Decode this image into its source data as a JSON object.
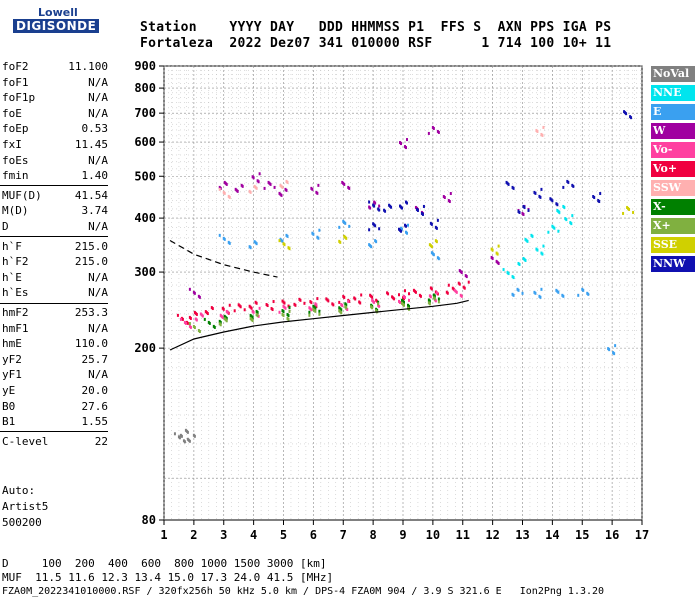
{
  "logo": {
    "top": "Lowell",
    "main": "DIGISONDE"
  },
  "header": {
    "line1": "Station    YYYY DAY   DDD HHMMSS P1  FFS S  AXN PPS IGA PS",
    "line2": "Fortaleza  2022 Dez07 341 010000 RSF      1 714 100 10+ 11"
  },
  "params": [
    {
      "name": "foF2",
      "value": "11.100"
    },
    {
      "name": "foF1",
      "value": "N/A"
    },
    {
      "name": "foF1p",
      "value": "N/A"
    },
    {
      "name": "foE",
      "value": "N/A"
    },
    {
      "name": "foEp",
      "value": "0.53"
    },
    {
      "name": "fxI",
      "value": "11.45"
    },
    {
      "name": "foEs",
      "value": "N/A"
    },
    {
      "name": "fmin",
      "value": "1.40"
    },
    {
      "name": "MUF(D)",
      "value": "41.54"
    },
    {
      "name": "M(D)",
      "value": "3.74"
    },
    {
      "name": "D",
      "value": "N/A"
    },
    {
      "name": "h`F",
      "value": "215.0"
    },
    {
      "name": "h`F2",
      "value": "215.0"
    },
    {
      "name": "h`E",
      "value": "N/A"
    },
    {
      "name": "h`Es",
      "value": "N/A"
    },
    {
      "name": "hmF2",
      "value": "253.3"
    },
    {
      "name": "hmF1",
      "value": "N/A"
    },
    {
      "name": "hmE",
      "value": "110.0"
    },
    {
      "name": "yF2",
      "value": "25.7"
    },
    {
      "name": "yF1",
      "value": "N/A"
    },
    {
      "name": "yE",
      "value": "20.0"
    },
    {
      "name": "B0",
      "value": "27.6"
    },
    {
      "name": "B1",
      "value": "1.55"
    },
    {
      "name": "C-level",
      "value": "22"
    }
  ],
  "autoscale": {
    "line1": "Auto:",
    "line2": "Artist5",
    "line3": "500200"
  },
  "legend": [
    {
      "label": "NoVal",
      "color": "#808080"
    },
    {
      "label": "NNE",
      "color": "#00e5ee"
    },
    {
      "label": "E",
      "color": "#3aa0f0"
    },
    {
      "label": "W",
      "color": "#a000a0"
    },
    {
      "label": "Vo-",
      "color": "#ff40a0"
    },
    {
      "label": "Vo+",
      "color": "#f00040"
    },
    {
      "label": "SSW",
      "color": "#ffb0b0"
    },
    {
      "label": "X-",
      "color": "#008000"
    },
    {
      "label": "X+",
      "color": "#80b040"
    },
    {
      "label": "SSE",
      "color": "#d0d000"
    },
    {
      "label": "NNW",
      "color": "#1010b0"
    }
  ],
  "footer": {
    "d_line": "D     100  200  400  600  800 1000 1500 3000 [km]",
    "muf_line": "MUF  11.5 11.6 12.3 13.4 15.0 17.3 24.0 41.5 [MHz]",
    "file_line": "FZA0M_2022341010000.RSF / 320fx256h 50 kHz 5.0 km / DPS-4 FZA0M 904 / 3.9 S 321.6 E   Ion2Png 1.3.20"
  },
  "chart_data": {
    "type": "scatter",
    "xlim": [
      1,
      17
    ],
    "ylim": [
      80,
      900
    ],
    "y_scale": "log",
    "x_ticks": [
      1,
      2,
      3,
      4,
      5,
      6,
      7,
      8,
      9,
      10,
      11,
      12,
      13,
      14,
      15,
      16,
      17
    ],
    "y_ticks": [
      80,
      200,
      300,
      400,
      500,
      600,
      700,
      800,
      900
    ],
    "grid": true,
    "legend_position": "right",
    "series": [
      {
        "name": "Vo+",
        "color": "#f00040",
        "points": [
          [
            1.6,
            235
          ],
          [
            2,
            240
          ],
          [
            2.5,
            245
          ],
          [
            3,
            248
          ],
          [
            3.5,
            250
          ],
          [
            4,
            252
          ],
          [
            4.5,
            253
          ],
          [
            5,
            255
          ],
          [
            5.5,
            256
          ],
          [
            6,
            257
          ],
          [
            6.5,
            258
          ],
          [
            7,
            260
          ],
          [
            7.5,
            262
          ],
          [
            8,
            263
          ],
          [
            8.5,
            265
          ],
          [
            9,
            268
          ],
          [
            9.5,
            270
          ],
          [
            10,
            272
          ],
          [
            10.5,
            276
          ],
          [
            11,
            282
          ]
        ]
      },
      {
        "name": "Vo-",
        "color": "#ff40a0",
        "points": [
          [
            1.7,
            230
          ],
          [
            2.2,
            238
          ],
          [
            3,
            240
          ],
          [
            4,
            244
          ],
          [
            5,
            248
          ],
          [
            6,
            250
          ],
          [
            7,
            253
          ],
          [
            8,
            256
          ],
          [
            9,
            260
          ],
          [
            10,
            265
          ],
          [
            10.8,
            270
          ]
        ]
      },
      {
        "name": "W",
        "color": "#a000a0",
        "points": [
          [
            2,
            270
          ],
          [
            3,
            480
          ],
          [
            3.5,
            470
          ],
          [
            4,
            500
          ],
          [
            4.5,
            480
          ],
          [
            5,
            460
          ],
          [
            6,
            470
          ],
          [
            7,
            480
          ],
          [
            8,
            430
          ],
          [
            9,
            600
          ],
          [
            9.5,
            420
          ],
          [
            10,
            640
          ],
          [
            10.5,
            450
          ],
          [
            11,
            300
          ],
          [
            12,
            320
          ],
          [
            13,
            420
          ]
        ]
      },
      {
        "name": "E",
        "color": "#3aa0f0",
        "points": [
          [
            3,
            360
          ],
          [
            4,
            350
          ],
          [
            5,
            360
          ],
          [
            6,
            370
          ],
          [
            7,
            390
          ],
          [
            8,
            350
          ],
          [
            9,
            380
          ],
          [
            10,
            330
          ],
          [
            12.8,
            270
          ],
          [
            13.5,
            270
          ],
          [
            14.2,
            270
          ],
          [
            15,
            270
          ],
          [
            16,
            200
          ]
        ]
      },
      {
        "name": "NNE",
        "color": "#00e5ee",
        "points": [
          [
            12.5,
            300
          ],
          [
            13,
            320
          ],
          [
            13.2,
            360
          ],
          [
            13.5,
            340
          ],
          [
            14,
            380
          ],
          [
            14.3,
            420
          ],
          [
            14.5,
            400
          ]
        ]
      },
      {
        "name": "NNW",
        "color": "#1010b0",
        "points": [
          [
            8,
            430
          ],
          [
            8.5,
            425
          ],
          [
            9,
            430
          ],
          [
            9.5,
            420
          ],
          [
            8,
            385
          ],
          [
            9,
            380
          ],
          [
            10,
            390
          ],
          [
            12.5,
            480
          ],
          [
            13,
            420
          ],
          [
            13.5,
            460
          ],
          [
            14,
            440
          ],
          [
            14.5,
            480
          ],
          [
            15.5,
            450
          ],
          [
            16.5,
            700
          ]
        ]
      },
      {
        "name": "X-",
        "color": "#008000",
        "points": [
          [
            2.5,
            230
          ],
          [
            3,
            235
          ],
          [
            4,
            240
          ],
          [
            5,
            245
          ],
          [
            6,
            248
          ],
          [
            7,
            250
          ],
          [
            8,
            252
          ],
          [
            9,
            256
          ],
          [
            10,
            262
          ]
        ]
      },
      {
        "name": "X+",
        "color": "#80b040",
        "points": [
          [
            2,
            225
          ],
          [
            3,
            232
          ],
          [
            4,
            236
          ],
          [
            5,
            240
          ],
          [
            6,
            244
          ],
          [
            7,
            246
          ],
          [
            8,
            250
          ],
          [
            9,
            252
          ],
          [
            10,
            258
          ]
        ]
      },
      {
        "name": "SSE",
        "color": "#d0d000",
        "points": [
          [
            5,
            350
          ],
          [
            7,
            360
          ],
          [
            10,
            350
          ],
          [
            12,
            340
          ],
          [
            16.5,
            420
          ]
        ]
      },
      {
        "name": "SSW",
        "color": "#ffb0b0",
        "points": [
          [
            3,
            460
          ],
          [
            4,
            470
          ],
          [
            5,
            480
          ],
          [
            13.5,
            640
          ]
        ]
      },
      {
        "name": "NoVal",
        "color": "#808080",
        "points": [
          [
            1.5,
            125
          ],
          [
            1.7,
            128
          ],
          [
            1.9,
            124
          ]
        ]
      }
    ]
  }
}
